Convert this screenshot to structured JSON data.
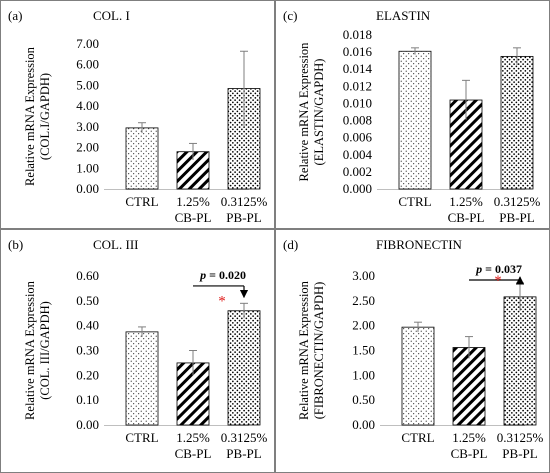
{
  "chart_data": [
    {
      "type": "bar",
      "panel_label": "(a)",
      "title": "COL. I",
      "ylabel": [
        "Relative mRNA Expression",
        "(COL.I/GAPDH)"
      ],
      "categories": [
        [
          "CTRL"
        ],
        [
          "1.25%",
          "CB-PL"
        ],
        [
          "0.3125%",
          "PB-PL"
        ]
      ],
      "values": [
        2.95,
        1.8,
        4.85
      ],
      "errors": [
        0.25,
        0.4,
        1.8
      ],
      "patterns": [
        "dots-light",
        "diagonal-stripes",
        "dots-dense"
      ],
      "ylim": [
        0,
        7
      ],
      "ytick_labels": [
        "0.00",
        "1.00",
        "2.00",
        "3.00",
        "4.00",
        "5.00",
        "6.00",
        "7.00"
      ],
      "grid": false,
      "annotation": null
    },
    {
      "type": "bar",
      "panel_label": "(c)",
      "title": "ELASTIN",
      "ylabel": [
        "Relative mRNA Expression",
        "(ELASTIN/GAPDH)"
      ],
      "categories": [
        [
          "CTRL"
        ],
        [
          "1.25%",
          "CB-PL"
        ],
        [
          "0.3125%",
          "PB-PL"
        ]
      ],
      "values": [
        0.0161,
        0.0104,
        0.0155
      ],
      "errors": [
        0.0004,
        0.0023,
        0.001
      ],
      "patterns": [
        "dots-light",
        "diagonal-stripes",
        "dots-dense"
      ],
      "ylim": [
        0,
        0.018
      ],
      "ytick_labels": [
        "0.000",
        "0.002",
        "0.004",
        "0.006",
        "0.008",
        "0.010",
        "0.012",
        "0.014",
        "0.016",
        "0.018"
      ],
      "grid": false,
      "annotation": null
    },
    {
      "type": "bar",
      "panel_label": "(b)",
      "title": "COL. III",
      "ylabel": [
        "Relative mRNA Expression",
        "(COL. III/GAPDH)"
      ],
      "categories": [
        [
          "CTRL"
        ],
        [
          "1.25%",
          "CB-PL"
        ],
        [
          "0.3125%",
          "PB-PL"
        ]
      ],
      "values": [
        0.375,
        0.25,
        0.46
      ],
      "errors": [
        0.02,
        0.05,
        0.03
      ],
      "patterns": [
        "dots-light",
        "diagonal-stripes",
        "dots-dense"
      ],
      "ylim": [
        0,
        0.6
      ],
      "ytick_labels": [
        "0.00",
        "0.10",
        "0.20",
        "0.30",
        "0.40",
        "0.50",
        "0.60"
      ],
      "grid": false,
      "annotation": {
        "p_symbol": "p",
        "p_rest": " = 0.020",
        "star": "*",
        "from": 1,
        "to": 2,
        "level": 0.56
      }
    },
    {
      "type": "bar",
      "panel_label": "(d)",
      "title": "FIBRONECTIN",
      "ylabel": [
        "Relative mRNA Expression",
        "(FIBRONECTIN/GAPDH)"
      ],
      "categories": [
        [
          "CTRL"
        ],
        [
          "1.25%",
          "CB-PL"
        ],
        [
          "0.3125%",
          "PB-PL"
        ]
      ],
      "values": [
        1.97,
        1.56,
        2.58
      ],
      "errors": [
        0.1,
        0.22,
        0.28
      ],
      "patterns": [
        "dots-light",
        "diagonal-stripes",
        "dots-dense"
      ],
      "ylim": [
        0,
        3
      ],
      "ytick_labels": [
        "0.00",
        "0.50",
        "1.00",
        "1.50",
        "2.00",
        "2.50",
        "3.00"
      ],
      "grid": false,
      "annotation": {
        "p_symbol": "p",
        "p_rest": " = 0.037",
        "star": "*",
        "from": 1,
        "to": 2,
        "level": 2.92
      }
    }
  ],
  "colors": {
    "bar_fill": "#ffffff",
    "bar_edge": "#000000",
    "error_bar": "#7f7f7f",
    "star": "#e0201e",
    "panel_border": "#7f7f7f"
  }
}
